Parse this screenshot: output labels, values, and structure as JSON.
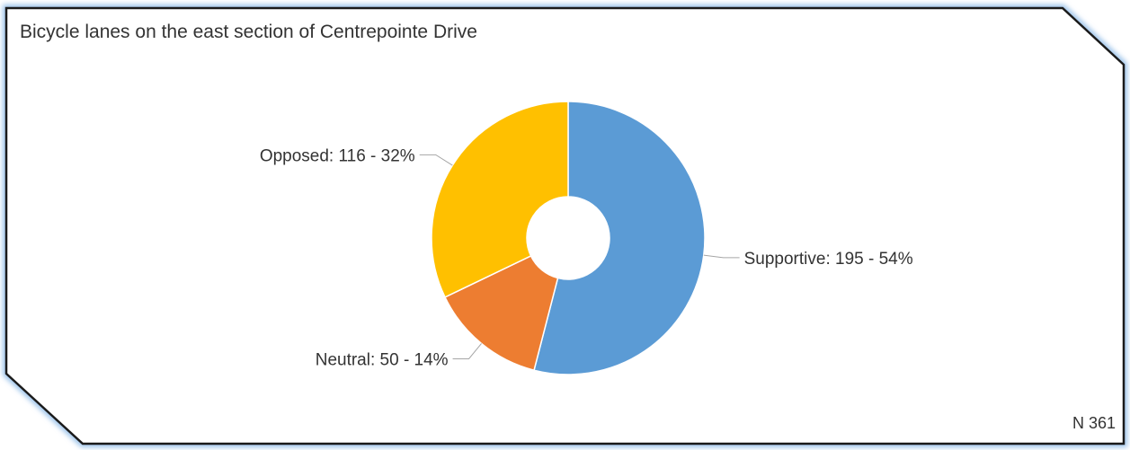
{
  "chart_data": {
    "type": "pie",
    "title": "Bicycle lanes on the east section of Centrepointe Drive",
    "donut": true,
    "categories": [
      "Supportive",
      "Neutral",
      "Opposed"
    ],
    "values": [
      195,
      50,
      116
    ],
    "percents": [
      54,
      14,
      32
    ],
    "labels": [
      "Supportive: 195 - 54%",
      "Neutral: 50 - 14%",
      "Opposed: 116 - 32%"
    ],
    "colors": [
      "#5B9BD5",
      "#ED7D31",
      "#FFC000"
    ],
    "total_label": "N 361"
  }
}
